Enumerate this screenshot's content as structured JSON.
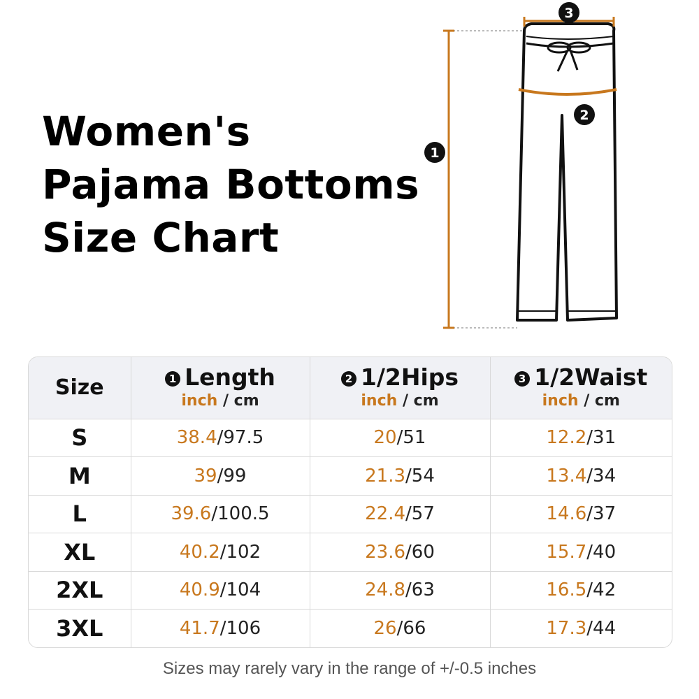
{
  "title": {
    "line1": "Women's",
    "line2": "Pajama Bottoms",
    "line3": "Size Chart"
  },
  "diagram": {
    "markers": [
      "1",
      "2",
      "3"
    ],
    "measure_color": "#c8781e"
  },
  "table": {
    "size_header": "Size",
    "unit_inch": "inch",
    "unit_sep": "/",
    "unit_cm": "cm",
    "columns": [
      {
        "num": "1",
        "label": "Length"
      },
      {
        "num": "2",
        "label": "1/2Hips"
      },
      {
        "num": "3",
        "label": "1/2Waist"
      }
    ],
    "rows": [
      {
        "size": "S",
        "length_in": "38.4",
        "length_cm": "97.5",
        "hips_in": "20",
        "hips_cm": "51",
        "waist_in": "12.2",
        "waist_cm": "31"
      },
      {
        "size": "M",
        "length_in": "39",
        "length_cm": "99",
        "hips_in": "21.3",
        "hips_cm": "54",
        "waist_in": "13.4",
        "waist_cm": "34"
      },
      {
        "size": "L",
        "length_in": "39.6",
        "length_cm": "100.5",
        "hips_in": "22.4",
        "hips_cm": "57",
        "waist_in": "14.6",
        "waist_cm": "37"
      },
      {
        "size": "XL",
        "length_in": "40.2",
        "length_cm": "102",
        "hips_in": "23.6",
        "hips_cm": "60",
        "waist_in": "15.7",
        "waist_cm": "40"
      },
      {
        "size": "2XL",
        "length_in": "40.9",
        "length_cm": "104",
        "hips_in": "24.8",
        "hips_cm": "63",
        "waist_in": "16.5",
        "waist_cm": "42"
      },
      {
        "size": "3XL",
        "length_in": "41.7",
        "length_cm": "106",
        "hips_in": "26",
        "hips_cm": "66",
        "waist_in": "17.3",
        "waist_cm": "44"
      }
    ],
    "separator": "/"
  },
  "footnote": "Sizes may rarely vary in the range of +/-0.5 inches",
  "colors": {
    "accent": "#c8781e",
    "header_bg": "#f0f1f5",
    "border": "#d9d9d9"
  }
}
